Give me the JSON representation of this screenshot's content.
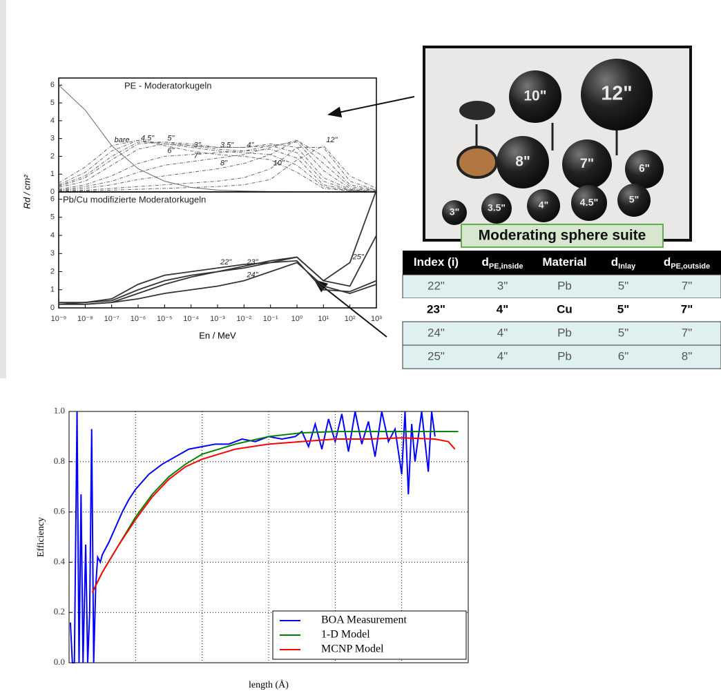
{
  "chart_data": [
    {
      "type": "line",
      "title": "PE - Moderatorkugeln",
      "xscale": "log",
      "xlim": [
        1e-09,
        1000
      ],
      "ylim": [
        0,
        6.4
      ],
      "yticks": [
        0,
        1,
        2,
        3,
        4,
        5,
        6
      ],
      "ylabel": "Rd / cm²",
      "x": [
        1e-09,
        1e-08,
        1e-07,
        1e-06,
        1e-05,
        0.0001,
        0.001,
        0.01,
        0.1,
        1,
        10,
        100,
        1000
      ],
      "series": [
        {
          "name": "bare",
          "color": "#666",
          "values": [
            6.0,
            4.6,
            2.6,
            1.3,
            0.6,
            0.25,
            0.1,
            0.05,
            0.02,
            0.0,
            0.0,
            0.0,
            0.0
          ]
        },
        {
          "name": "3\"",
          "color": "#666",
          "values": [
            0.5,
            1.4,
            2.6,
            2.9,
            2.6,
            2.3,
            2.1,
            2.0,
            1.8,
            1.1,
            0.2,
            0.05,
            0.0
          ]
        },
        {
          "name": "3.5\"",
          "color": "#666",
          "values": [
            0.4,
            1.1,
            2.3,
            2.9,
            2.7,
            2.5,
            2.3,
            2.2,
            2.1,
            1.5,
            0.3,
            0.05,
            0.0
          ]
        },
        {
          "name": "4\"",
          "color": "#666",
          "values": [
            0.35,
            0.9,
            2.0,
            2.8,
            2.8,
            2.6,
            2.4,
            2.3,
            2.4,
            1.9,
            0.4,
            0.1,
            0.0
          ]
        },
        {
          "name": "4.5\"",
          "color": "#666",
          "values": [
            0.3,
            0.8,
            1.8,
            2.7,
            2.8,
            2.7,
            2.5,
            2.5,
            2.6,
            2.2,
            0.6,
            0.1,
            0.0
          ]
        },
        {
          "name": "5\"",
          "color": "#666",
          "values": [
            0.25,
            0.6,
            1.5,
            2.4,
            2.7,
            2.6,
            2.5,
            2.5,
            2.7,
            2.5,
            0.8,
            0.15,
            0.0
          ]
        },
        {
          "name": "6\"",
          "color": "#666",
          "values": [
            0.15,
            0.4,
            0.9,
            1.6,
            2.0,
            2.1,
            2.2,
            2.3,
            2.6,
            2.8,
            1.2,
            0.2,
            0.05
          ]
        },
        {
          "name": "7\"",
          "color": "#666",
          "values": [
            0.1,
            0.3,
            0.6,
            1.1,
            1.5,
            1.7,
            1.9,
            2.1,
            2.5,
            2.9,
            1.6,
            0.3,
            0.05
          ]
        },
        {
          "name": "8\"",
          "color": "#666",
          "values": [
            0.08,
            0.2,
            0.4,
            0.7,
            0.9,
            1.1,
            1.3,
            1.6,
            2.1,
            2.9,
            2.0,
            0.4,
            0.1
          ]
        },
        {
          "name": "10\"",
          "color": "#666",
          "values": [
            0.05,
            0.1,
            0.2,
            0.3,
            0.4,
            0.5,
            0.6,
            0.8,
            1.3,
            2.5,
            2.5,
            0.6,
            0.1
          ]
        },
        {
          "name": "12\"",
          "color": "#666",
          "values": [
            0.03,
            0.05,
            0.1,
            0.15,
            0.2,
            0.25,
            0.3,
            0.4,
            0.7,
            1.8,
            2.6,
            0.9,
            0.2
          ]
        }
      ]
    },
    {
      "type": "line",
      "title": "Pb/Cu modifizierte Moderatorkugeln",
      "xscale": "log",
      "xlim": [
        1e-09,
        1000
      ],
      "ylim": [
        0,
        6.4
      ],
      "yticks": [
        0,
        1,
        2,
        3,
        4,
        5,
        6
      ],
      "xlabel": "En / MeV",
      "xticks": [
        {
          "value": 1e-09,
          "label": "10⁻⁹"
        },
        {
          "value": 1e-08,
          "label": "10⁻⁸"
        },
        {
          "value": 1e-07,
          "label": "10⁻⁷"
        },
        {
          "value": 1e-06,
          "label": "10⁻⁶"
        },
        {
          "value": 1e-05,
          "label": "10⁻⁵"
        },
        {
          "value": 0.0001,
          "label": "10⁻⁴"
        },
        {
          "value": 0.001,
          "label": "10⁻³"
        },
        {
          "value": 0.01,
          "label": "10⁻²"
        },
        {
          "value": 0.1,
          "label": "10⁻¹"
        },
        {
          "value": 1,
          "label": "10⁰"
        },
        {
          "value": 10,
          "label": "10¹"
        },
        {
          "value": 100,
          "label": "10²"
        },
        {
          "value": 1000,
          "label": "10³"
        }
      ],
      "x": [
        1e-09,
        1e-08,
        1e-07,
        1e-06,
        1e-05,
        0.0001,
        0.001,
        0.01,
        0.1,
        1,
        10,
        100,
        1000
      ],
      "series": [
        {
          "name": "22\"",
          "color": "#333",
          "values": [
            0.3,
            0.3,
            0.5,
            1.3,
            1.8,
            2.0,
            2.2,
            2.4,
            2.5,
            2.6,
            1.0,
            0.9,
            1.5
          ]
        },
        {
          "name": "23\"",
          "color": "#333",
          "values": [
            0.2,
            0.3,
            0.4,
            1.0,
            1.5,
            1.8,
            2.0,
            2.2,
            2.5,
            2.8,
            1.5,
            1.2,
            4.0
          ]
        },
        {
          "name": "24\"",
          "color": "#333",
          "values": [
            0.2,
            0.2,
            0.3,
            0.5,
            0.8,
            1.0,
            1.2,
            1.5,
            2.0,
            2.5,
            1.2,
            0.8,
            1.3
          ]
        },
        {
          "name": "25\"",
          "color": "#333",
          "values": [
            0.2,
            0.2,
            0.3,
            0.8,
            1.3,
            1.7,
            2.0,
            2.3,
            2.6,
            2.8,
            1.5,
            2.5,
            6.5
          ]
        }
      ]
    },
    {
      "type": "line",
      "xlabel": "length (Å)",
      "ylabel": "Efficiency",
      "xlim": [
        0,
        6
      ],
      "ylim": [
        0,
        1
      ],
      "yticks": [
        {
          "value": 0,
          "label": "0.0"
        },
        0.2,
        0.4,
        0.6,
        0.8,
        {
          "value": 1,
          "label": "1.0"
        }
      ],
      "xgrid": [
        1,
        2,
        3,
        4,
        5
      ],
      "grid": true,
      "legend": "lower right",
      "series": [
        {
          "name": "BOA Measurement",
          "color": "#0000ff",
          "x": [
            0.02,
            0.05,
            0.08,
            0.12,
            0.15,
            0.18,
            0.21,
            0.25,
            0.28,
            0.31,
            0.34,
            0.37,
            0.4,
            0.43,
            0.47,
            0.5,
            0.6,
            0.7,
            0.8,
            0.9,
            1.0,
            1.2,
            1.4,
            1.6,
            1.8,
            2.0,
            2.2,
            2.4,
            2.6,
            2.8,
            3.0,
            3.2,
            3.4,
            3.5,
            3.6,
            3.7,
            3.8,
            3.9,
            4.0,
            4.1,
            4.2,
            4.3,
            4.4,
            4.5,
            4.6,
            4.7,
            4.8,
            4.9,
            5.0,
            5.05,
            5.1,
            5.15,
            5.2,
            5.3,
            5.4,
            5.45,
            5.5
          ],
          "values": [
            0.16,
            0.0,
            0.0,
            1.0,
            0.0,
            0.67,
            0.0,
            0.47,
            0.0,
            0.2,
            0.93,
            0.0,
            0.3,
            0.42,
            0.4,
            0.43,
            0.48,
            0.54,
            0.6,
            0.65,
            0.69,
            0.75,
            0.79,
            0.82,
            0.85,
            0.86,
            0.87,
            0.87,
            0.89,
            0.88,
            0.9,
            0.89,
            0.9,
            0.92,
            0.86,
            0.95,
            0.85,
            0.97,
            0.88,
            0.99,
            0.84,
            1.0,
            0.87,
            0.96,
            0.82,
            1.0,
            0.88,
            0.93,
            0.75,
            1.0,
            0.67,
            0.95,
            0.8,
            1.0,
            0.76,
            1.0,
            0.9
          ]
        },
        {
          "name": "1-D Model",
          "color": "#008000",
          "x": [
            0.35,
            0.5,
            0.75,
            1.0,
            1.25,
            1.5,
            1.75,
            2,
            2.5,
            3,
            3.5,
            4,
            4.5,
            5,
            5.5,
            5.85
          ],
          "values": [
            0.28,
            0.36,
            0.47,
            0.58,
            0.67,
            0.74,
            0.79,
            0.83,
            0.87,
            0.9,
            0.915,
            0.92,
            0.92,
            0.92,
            0.92,
            0.92
          ]
        },
        {
          "name": "MCNP Model",
          "color": "#ff0000",
          "x": [
            0.35,
            0.5,
            0.75,
            1.0,
            1.25,
            1.5,
            1.75,
            2,
            2.5,
            3,
            3.5,
            4,
            4.5,
            5,
            5.5,
            5.7,
            5.8
          ],
          "values": [
            0.28,
            0.36,
            0.47,
            0.57,
            0.66,
            0.73,
            0.78,
            0.81,
            0.85,
            0.87,
            0.88,
            0.89,
            0.89,
            0.895,
            0.89,
            0.88,
            0.85
          ]
        }
      ]
    }
  ],
  "photo": {
    "sphere_labels": [
      "10\"",
      "12\"",
      "8\"",
      "7\"",
      "6\"",
      "3\"",
      "3.5\"",
      "4\"",
      "4.5\"",
      "5\""
    ],
    "caption": "Moderating sphere suite"
  },
  "table": {
    "header": [
      {
        "text": "Index (i)"
      },
      {
        "text": "d",
        "sub": "PE,inside"
      },
      {
        "text": "Material"
      },
      {
        "text": "d",
        "sub": "Inlay"
      },
      {
        "text": "d",
        "sub": "PE,outside"
      }
    ],
    "rows": [
      [
        "22\"",
        "3\"",
        "Pb",
        "5\"",
        "7\""
      ],
      [
        "23\"",
        "4\"",
        "Cu",
        "5\"",
        "7\""
      ],
      [
        "24\"",
        "4\"",
        "Pb",
        "5\"",
        "7\""
      ],
      [
        "25\"",
        "4\"",
        "Pb",
        "6\"",
        "8\""
      ]
    ]
  }
}
